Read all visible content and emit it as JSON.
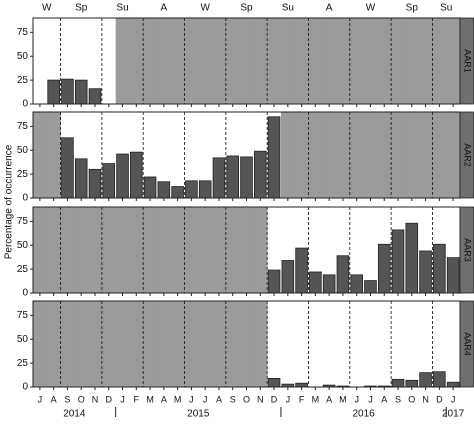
{
  "figure": {
    "y_label": "Percentage of occurrence",
    "seasons": [
      "W",
      "Sp",
      "Su",
      "A",
      "W",
      "Sp",
      "Su",
      "A",
      "W",
      "Sp",
      "Su"
    ],
    "categories": [
      "J",
      "A",
      "S",
      "O",
      "N",
      "D",
      "J",
      "F",
      "M",
      "A",
      "M",
      "J",
      "J",
      "A",
      "S",
      "O",
      "N",
      "D",
      "J",
      "F",
      "M",
      "A",
      "M",
      "J",
      "J",
      "A",
      "S",
      "O",
      "N",
      "D",
      "J"
    ],
    "years": [
      "2014",
      "2015",
      "2016",
      "2017"
    ]
  },
  "chart_data": [
    {
      "type": "bar",
      "panel_label": "AAR1",
      "color": "#555555",
      "ylim": [
        0,
        90
      ],
      "yticks": [
        0,
        25,
        50,
        75
      ],
      "values": [
        0,
        25,
        26,
        25,
        16,
        0,
        null,
        null,
        null,
        null,
        null,
        null,
        null,
        null,
        null,
        null,
        null,
        null,
        null,
        null,
        null,
        null,
        null,
        null,
        null,
        null,
        null,
        null,
        null,
        null,
        null
      ]
    },
    {
      "type": "bar",
      "panel_label": "AAR2",
      "color": "#555555",
      "ylim": [
        0,
        90
      ],
      "yticks": [
        0,
        25,
        50,
        75
      ],
      "values": [
        null,
        null,
        63,
        41,
        30,
        36,
        46,
        48,
        22,
        17,
        12,
        18,
        18,
        42,
        44,
        43,
        49,
        85,
        null,
        null,
        null,
        null,
        null,
        null,
        null,
        null,
        null,
        null,
        null,
        null,
        null
      ]
    },
    {
      "type": "bar",
      "panel_label": "AAR3",
      "color": "#555555",
      "ylim": [
        0,
        90
      ],
      "yticks": [
        0,
        25,
        50,
        75
      ],
      "values": [
        null,
        null,
        null,
        null,
        null,
        null,
        null,
        null,
        null,
        null,
        null,
        null,
        null,
        null,
        null,
        null,
        null,
        24,
        34,
        47,
        22,
        19,
        39,
        19,
        13,
        51,
        66,
        73,
        44,
        51,
        37
      ]
    },
    {
      "type": "bar",
      "panel_label": "AAR4",
      "color": "#555555",
      "ylim": [
        0,
        90
      ],
      "yticks": [
        0,
        25,
        50,
        75
      ],
      "values": [
        null,
        null,
        null,
        null,
        null,
        null,
        null,
        null,
        null,
        null,
        null,
        null,
        null,
        null,
        null,
        null,
        null,
        9,
        3,
        4,
        0,
        2,
        1,
        0,
        1,
        1,
        8,
        7,
        15,
        16,
        5
      ]
    }
  ]
}
